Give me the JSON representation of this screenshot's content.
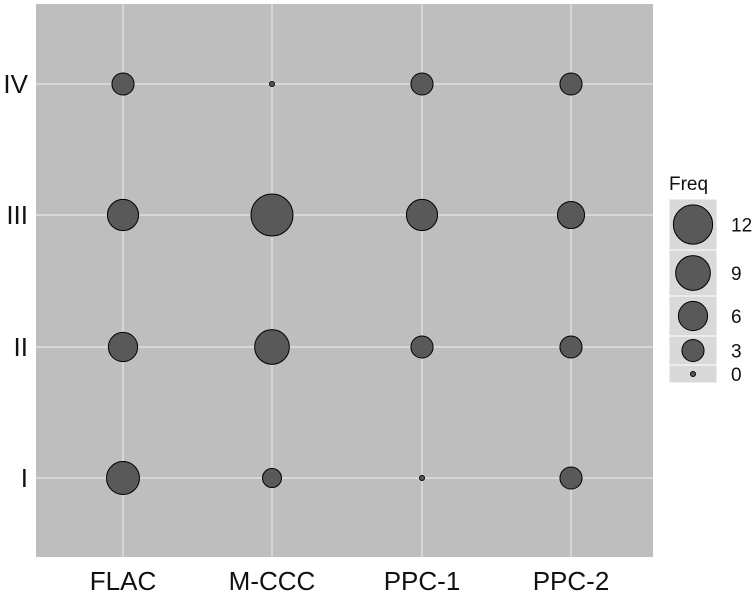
{
  "chart_data": {
    "type": "scatter",
    "subtype": "balloon",
    "x_categories": [
      "FLAC",
      "M-CCC",
      "PPC-1",
      "PPC-2"
    ],
    "y_categories": [
      "I",
      "II",
      "III",
      "IV"
    ],
    "points": [
      {
        "x": "FLAC",
        "y": "IV",
        "freq": 3
      },
      {
        "x": "M-CCC",
        "y": "IV",
        "freq": 0
      },
      {
        "x": "PPC-1",
        "y": "IV",
        "freq": 3
      },
      {
        "x": "PPC-2",
        "y": "IV",
        "freq": 3
      },
      {
        "x": "FLAC",
        "y": "III",
        "freq": 7
      },
      {
        "x": "M-CCC",
        "y": "III",
        "freq": 14
      },
      {
        "x": "PPC-1",
        "y": "III",
        "freq": 7
      },
      {
        "x": "PPC-2",
        "y": "III",
        "freq": 5
      },
      {
        "x": "FLAC",
        "y": "II",
        "freq": 6
      },
      {
        "x": "M-CCC",
        "y": "II",
        "freq": 9
      },
      {
        "x": "PPC-1",
        "y": "II",
        "freq": 3
      },
      {
        "x": "PPC-2",
        "y": "II",
        "freq": 3
      },
      {
        "x": "FLAC",
        "y": "I",
        "freq": 8
      },
      {
        "x": "M-CCC",
        "y": "I",
        "freq": 2
      },
      {
        "x": "PPC-1",
        "y": "I",
        "freq": 0
      },
      {
        "x": "PPC-2",
        "y": "I",
        "freq": 3
      }
    ],
    "size_range": [
      0,
      14
    ],
    "legend": {
      "title": "Freq",
      "placement": "right",
      "values": [
        12,
        9,
        6,
        3,
        0
      ]
    },
    "grid": true,
    "colors": {
      "panel": "#bebebe",
      "gridline": "#e6e6e6",
      "point_fill": "#595959",
      "point_stroke": "#000000",
      "legend_key_bg": "#d9d9d9"
    }
  }
}
